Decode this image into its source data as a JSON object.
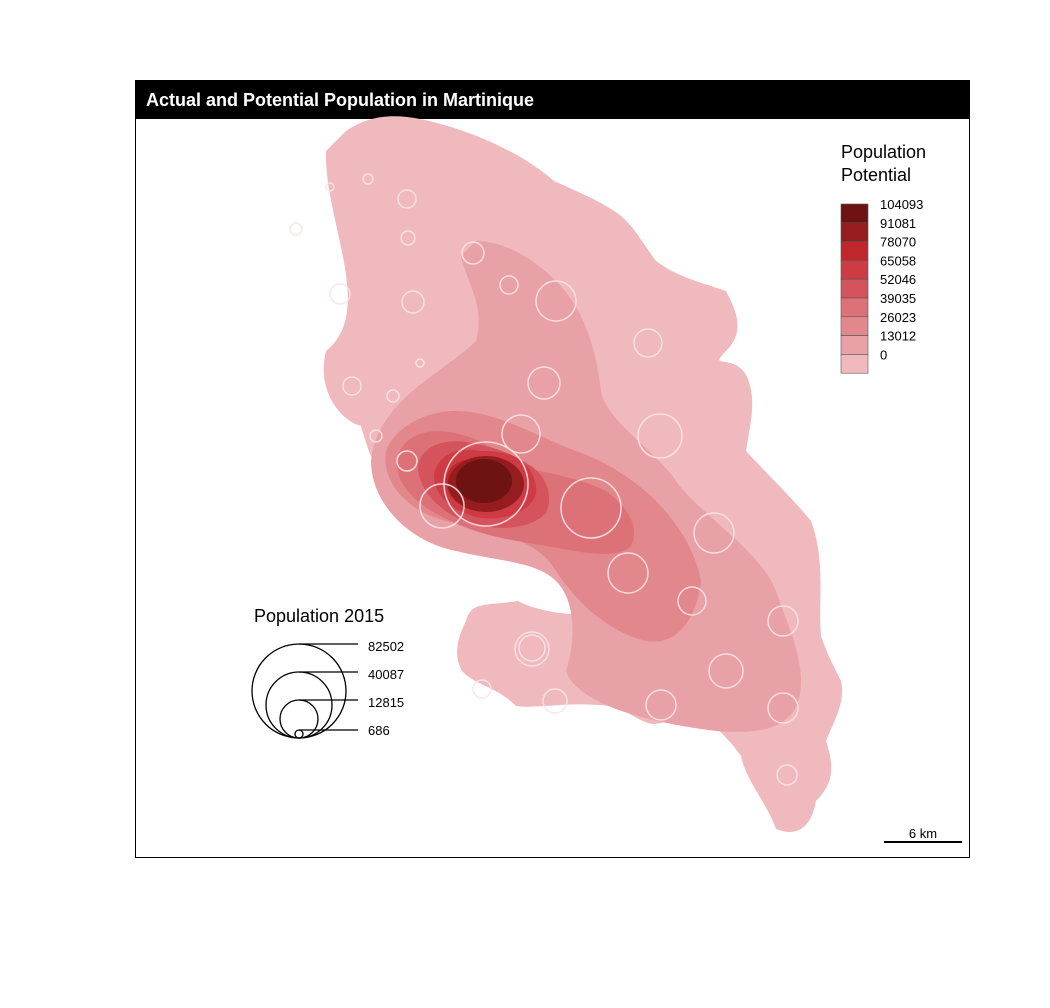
{
  "title": "Actual and Potential Population in Martinique",
  "potential_legend": {
    "title_line1": "Population",
    "title_line2": "Potential",
    "classes": [
      {
        "label": "104093",
        "color": "#6e1212"
      },
      {
        "label": "91081",
        "color": "#961d1f"
      },
      {
        "label": "78070",
        "color": "#c2262d"
      },
      {
        "label": "65058",
        "color": "#cf3b45"
      },
      {
        "label": "52046",
        "color": "#d5535c"
      },
      {
        "label": "39035",
        "color": "#dc7278"
      },
      {
        "label": "26023",
        "color": "#e2878c"
      },
      {
        "label": "13012",
        "color": "#e8a1a6"
      },
      {
        "label": "0",
        "color": "#f0b9bd"
      }
    ]
  },
  "population_legend": {
    "title": "Population 2015",
    "values": [
      "82502",
      "40087",
      "12815",
      "686"
    ]
  },
  "scale_bar": {
    "label": "6 km"
  }
}
